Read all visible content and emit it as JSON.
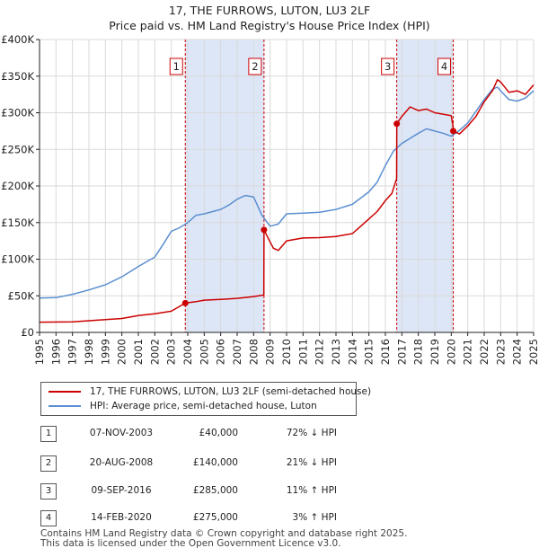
{
  "title": "17, THE FURROWS, LUTON, LU3 2LF",
  "subtitle": "Price paid vs. HM Land Registry's House Price Index (HPI)",
  "legend": {
    "property_label": "17, THE FURROWS, LUTON, LU3 2LF (semi-detached house)",
    "hpi_label": "HPI: Average price, semi-detached house, Luton"
  },
  "transactions": [
    {
      "num": "1",
      "date": "07-NOV-2003",
      "price": "£40,000",
      "hpi": "72% ↓ HPI"
    },
    {
      "num": "2",
      "date": "20-AUG-2008",
      "price": "£140,000",
      "hpi": "21% ↓ HPI"
    },
    {
      "num": "3",
      "date": "09-SEP-2016",
      "price": "£285,000",
      "hpi": "11% ↑ HPI"
    },
    {
      "num": "4",
      "date": "14-FEB-2020",
      "price": "£275,000",
      "hpi": "3% ↑ HPI"
    }
  ],
  "footer": {
    "line1": "Contains HM Land Registry data © Crown copyright and database right 2025.",
    "line2": "This data is licensed under the Open Government Licence v3.0."
  },
  "colors": {
    "property": "#cc0000",
    "hpi": "#5b8fd0",
    "shade": "#dde6f7",
    "marker_line": "#cc0000"
  },
  "chart_data": {
    "type": "line",
    "xlim": [
      1995,
      2025
    ],
    "ylim": [
      0,
      400000
    ],
    "yticks": [
      0,
      50000,
      100000,
      150000,
      200000,
      250000,
      300000,
      350000,
      400000
    ],
    "ytick_labels": [
      "£0",
      "£50K",
      "£100K",
      "£150K",
      "£200K",
      "£250K",
      "£300K",
      "£350K",
      "£400K"
    ],
    "xticks": [
      1995,
      1996,
      1997,
      1998,
      1999,
      2000,
      2001,
      2002,
      2003,
      2004,
      2005,
      2006,
      2007,
      2008,
      2009,
      2010,
      2011,
      2012,
      2013,
      2014,
      2015,
      2016,
      2017,
      2018,
      2019,
      2020,
      2021,
      2022,
      2023,
      2024,
      2025
    ],
    "shaded_periods": [
      [
        2003.85,
        2008.63
      ],
      [
        2016.69,
        2020.12
      ]
    ],
    "markers": [
      {
        "label": "1",
        "x": 2003.85,
        "y": 40000
      },
      {
        "label": "2",
        "x": 2008.63,
        "y": 140000
      },
      {
        "label": "3",
        "x": 2016.69,
        "y": 285000
      },
      {
        "label": "4",
        "x": 2020.12,
        "y": 275000
      }
    ],
    "series": [
      {
        "name": "17, THE FURROWS, LUTON, LU3 2LF (semi-detached house)",
        "x": [
          1995.0,
          1997.0,
          1998.0,
          1999.0,
          2000.0,
          2001.0,
          2002.0,
          2003.0,
          2003.85,
          2004.5,
          2005.0,
          2006.0,
          2007.0,
          2008.0,
          2008.62,
          2008.63,
          2008.9,
          2009.2,
          2009.5,
          2010.0,
          2011.0,
          2012.0,
          2013.0,
          2014.0,
          2015.0,
          2015.5,
          2016.0,
          2016.4,
          2016.68,
          2016.69,
          2017.0,
          2017.5,
          2018.0,
          2018.5,
          2019.0,
          2019.5,
          2020.0,
          2020.11,
          2020.12,
          2020.5,
          2021.0,
          2021.5,
          2022.0,
          2022.5,
          2022.8,
          2023.0,
          2023.5,
          2024.0,
          2024.5,
          2025.0
        ],
        "values": [
          14000,
          14500,
          16000,
          17500,
          19000,
          23000,
          25500,
          29000,
          40000,
          42000,
          44000,
          45000,
          46500,
          49000,
          51000,
          140000,
          128000,
          115000,
          112000,
          125000,
          129000,
          129500,
          131000,
          135000,
          155000,
          165000,
          180000,
          190000,
          210000,
          285000,
          295000,
          308000,
          303000,
          305000,
          300000,
          298000,
          296000,
          282000,
          275000,
          271000,
          282000,
          295000,
          315000,
          330000,
          345000,
          342000,
          328000,
          330000,
          325000,
          338000
        ]
      },
      {
        "name": "HPI: Average price, semi-detached house, Luton",
        "x": [
          1995.0,
          1996.0,
          1997.0,
          1998.0,
          1999.0,
          2000.0,
          2001.0,
          2002.0,
          2002.5,
          2003.0,
          2003.5,
          2004.0,
          2004.5,
          2005.0,
          2006.0,
          2006.5,
          2007.0,
          2007.5,
          2008.0,
          2008.5,
          2009.0,
          2009.5,
          2010.0,
          2011.0,
          2012.0,
          2013.0,
          2014.0,
          2015.0,
          2015.5,
          2016.0,
          2016.5,
          2017.0,
          2017.5,
          2018.0,
          2018.5,
          2019.0,
          2019.5,
          2020.0,
          2020.5,
          2021.0,
          2021.5,
          2022.0,
          2022.5,
          2022.8,
          2023.0,
          2023.5,
          2024.0,
          2024.5,
          2025.0
        ],
        "values": [
          47000,
          47500,
          52000,
          58000,
          65000,
          76000,
          90000,
          103000,
          120000,
          138000,
          143000,
          150000,
          160000,
          162000,
          168000,
          174000,
          182000,
          187000,
          185000,
          160000,
          145000,
          148000,
          162000,
          163000,
          164000,
          168000,
          175000,
          192000,
          205000,
          228000,
          248000,
          258000,
          265000,
          272000,
          278000,
          275000,
          272000,
          268000,
          276000,
          286000,
          302000,
          318000,
          332000,
          335000,
          330000,
          318000,
          316000,
          320000,
          330000
        ]
      }
    ]
  }
}
